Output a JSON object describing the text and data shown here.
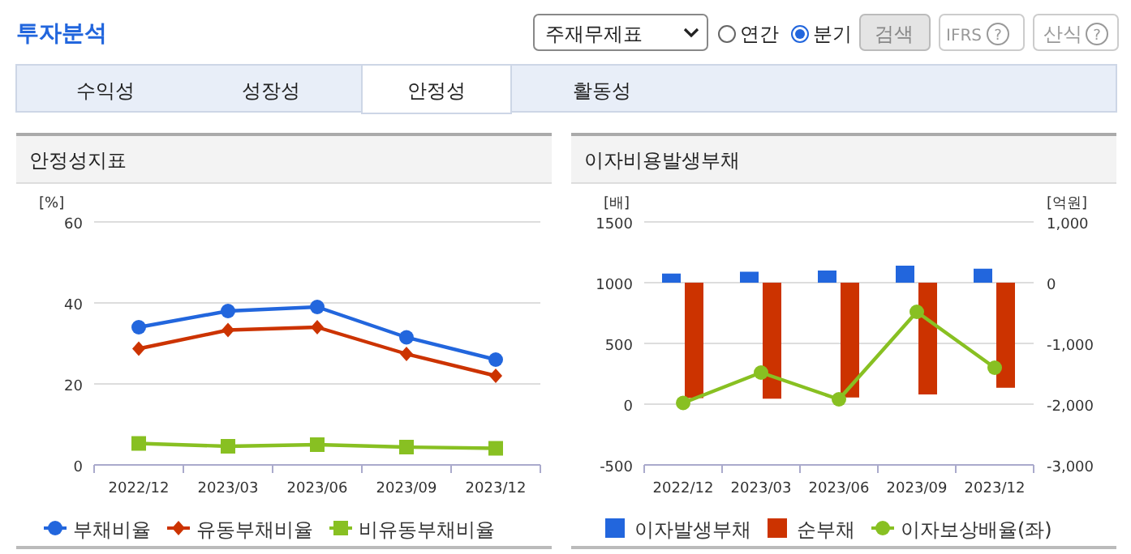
{
  "chart_data": [
    {
      "type": "other",
      "title": "투자분석",
      "annotations": [
        "주재무제표",
        "연간",
        "분기",
        "검색",
        "IFRS",
        "산식",
        "수익성",
        "성장성",
        "안정성",
        "활동성",
        "?",
        "?"
      ]
    },
    {
      "type": "line",
      "title": "안정성지표",
      "ylabel": "[%]",
      "categories": [
        "2022/12",
        "2023/03",
        "2023/06",
        "2023/09",
        "2023/12"
      ],
      "ylim": [
        0,
        60
      ],
      "yticks": [
        0,
        20,
        40,
        60
      ],
      "grid": "y",
      "legend": "bottom",
      "line_style": "solid",
      "series": [
        {
          "name": "부채비율",
          "color": "#2266dd",
          "marker": "circle",
          "values": [
            34.0,
            38.0,
            39.0,
            31.5,
            26.0
          ]
        },
        {
          "name": "유동부채비율",
          "color": "#cc3300",
          "marker": "diamond",
          "values": [
            28.7,
            33.3,
            34.0,
            27.4,
            22.0
          ]
        },
        {
          "name": "비유동부채비율",
          "color": "#88c022",
          "marker": "square",
          "values": [
            5.3,
            4.6,
            5.0,
            4.4,
            4.1
          ]
        }
      ]
    },
    {
      "type": "bar",
      "title": "이자비용발생부채",
      "ylabel": "[배]",
      "y2label": "[억원]",
      "categories": [
        "2022/12",
        "2023/03",
        "2023/06",
        "2023/09",
        "2023/12"
      ],
      "ylim": [
        -500,
        1500
      ],
      "yticks": [
        -500,
        0,
        500,
        1000,
        1500
      ],
      "y2lim": [
        -3000,
        1000
      ],
      "y2ticks": [
        {
          "value": -3000,
          "label": "-3,000"
        },
        {
          "value": -2000,
          "label": "-2,000"
        },
        {
          "value": -1000,
          "label": "-1,000"
        },
        0,
        {
          "value": 1000,
          "label": "1,000"
        }
      ],
      "grid": "y",
      "legend": "bottom",
      "series": [
        {
          "name": "이자발생부채",
          "color": "#2266dd",
          "axis": "y2",
          "values": [
            150,
            180,
            200,
            280,
            230
          ]
        },
        {
          "name": "순부채",
          "color": "#cc3300",
          "axis": "y2",
          "values": [
            -1900,
            -1910,
            -1890,
            -1840,
            -1730
          ]
        },
        {
          "name": "이자보상배율(좌)",
          "type": "line",
          "marker": "circle",
          "color": "#88c022",
          "axis": "y",
          "values": [
            10,
            260,
            40,
            760,
            300
          ]
        }
      ]
    }
  ]
}
